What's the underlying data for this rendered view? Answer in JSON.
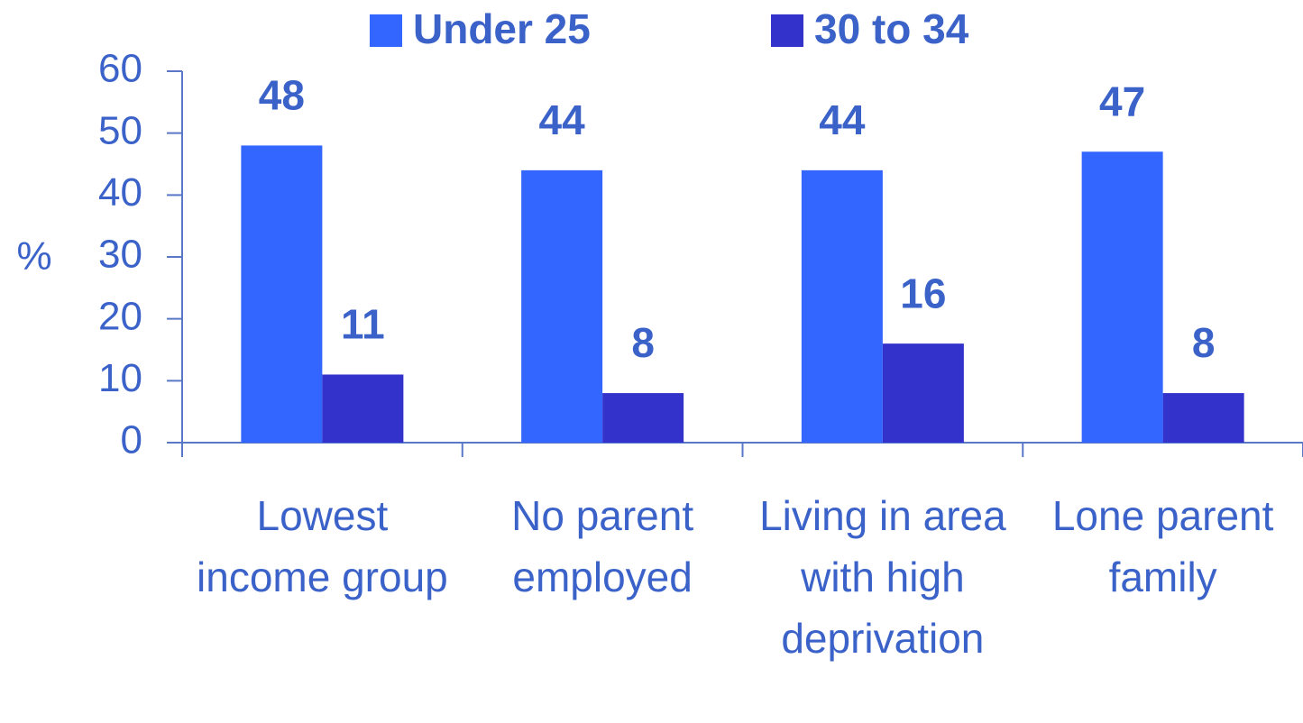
{
  "chart_data": {
    "type": "bar",
    "categories": [
      "Lowest income group",
      "No parent employed",
      "Living in area with high deprivation",
      "Lone parent family"
    ],
    "series": [
      {
        "name": "Under 25",
        "color": "#3366ff",
        "values": [
          48,
          44,
          44,
          47
        ]
      },
      {
        "name": "30 to 34",
        "color": "#3333cc",
        "values": [
          11,
          8,
          16,
          8
        ]
      }
    ],
    "y_label": "%",
    "ylim": [
      0,
      60
    ],
    "yticks": [
      0,
      10,
      20,
      30,
      40,
      50,
      60
    ],
    "legend": "top",
    "grid": false
  }
}
